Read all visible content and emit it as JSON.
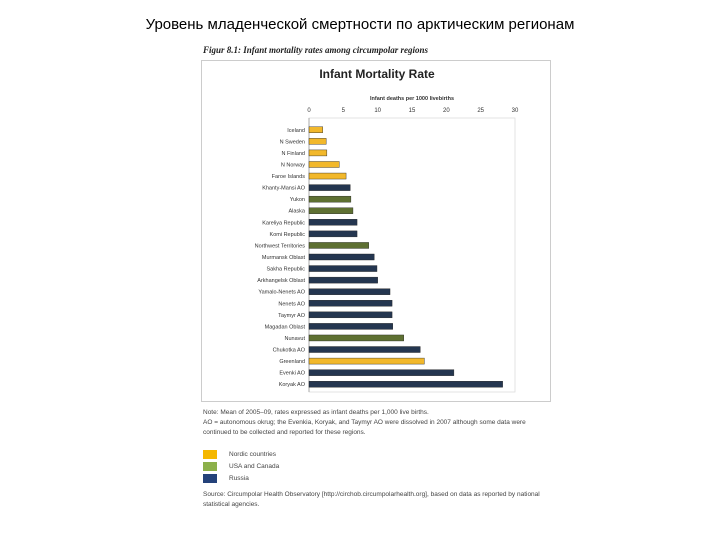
{
  "slide_title": "Уровень младенческой смертности по арктическим регионам",
  "figure_caption": "Figur 8.1: Infant mortality rates among circumpolar regions",
  "chart_data": {
    "type": "bar",
    "orientation": "horizontal",
    "title": "Infant Mortality Rate",
    "xlabel": "Infant deaths per 1000 livebirths",
    "xlim": [
      0,
      30
    ],
    "xticks": [
      0,
      5,
      10,
      15,
      20,
      25,
      30
    ],
    "categories": [
      "Iceland",
      "N Sweden",
      "N Finland",
      "N Norway",
      "Faroe Islands",
      "Khanty-Mansi AO",
      "Yukon",
      "Alaska",
      "Kareliya Republic",
      "Komi Republic",
      "Northwest Territories",
      "Murmansk Oblast",
      "Sakha Republic",
      "Arkhangelsk Oblast",
      "Yamalo-Nenets AO",
      "Nenets AO",
      "Taymyr AO",
      "Magadan Oblast",
      "Nunavut",
      "Chukotka AO",
      "Greenland",
      "Evenki AO",
      "Koryak AO"
    ],
    "values": [
      2.0,
      2.5,
      2.6,
      4.4,
      5.4,
      6.0,
      6.1,
      6.4,
      7.0,
      7.0,
      8.7,
      9.5,
      9.9,
      10.0,
      11.8,
      12.1,
      12.1,
      12.2,
      13.8,
      16.2,
      16.8,
      21.1,
      28.2
    ],
    "groups": [
      "nordic",
      "nordic",
      "nordic",
      "nordic",
      "nordic",
      "russia",
      "usa",
      "usa",
      "russia",
      "russia",
      "usa",
      "russia",
      "russia",
      "russia",
      "russia",
      "russia",
      "russia",
      "russia",
      "usa",
      "russia",
      "nordic",
      "russia",
      "russia"
    ],
    "colors": {
      "nordic": "#f2b82b",
      "usa": "#5e7032",
      "russia": "#243650"
    },
    "legend": [
      {
        "key": "nordic",
        "label": "Nordic countries",
        "color": "#f5b800"
      },
      {
        "key": "usa",
        "label": "USA and Canada",
        "color": "#8cb04a"
      },
      {
        "key": "russia",
        "label": "Russia",
        "color": "#24427a"
      }
    ]
  },
  "notes": {
    "note1": "Note: Mean of 2005–09, rates expressed as infant deaths per 1,000 live births.",
    "note2": "AO = autonomous okrug; the Evenkia, Koryak, and Taymyr AO were dissolved in 2007 although some data were continued to be collected and reported for these regions.",
    "source": "Source: Circumpolar Health Observatory [http://circhob.circumpolarhealth.org], based on data as reported by national statistical agencies."
  }
}
